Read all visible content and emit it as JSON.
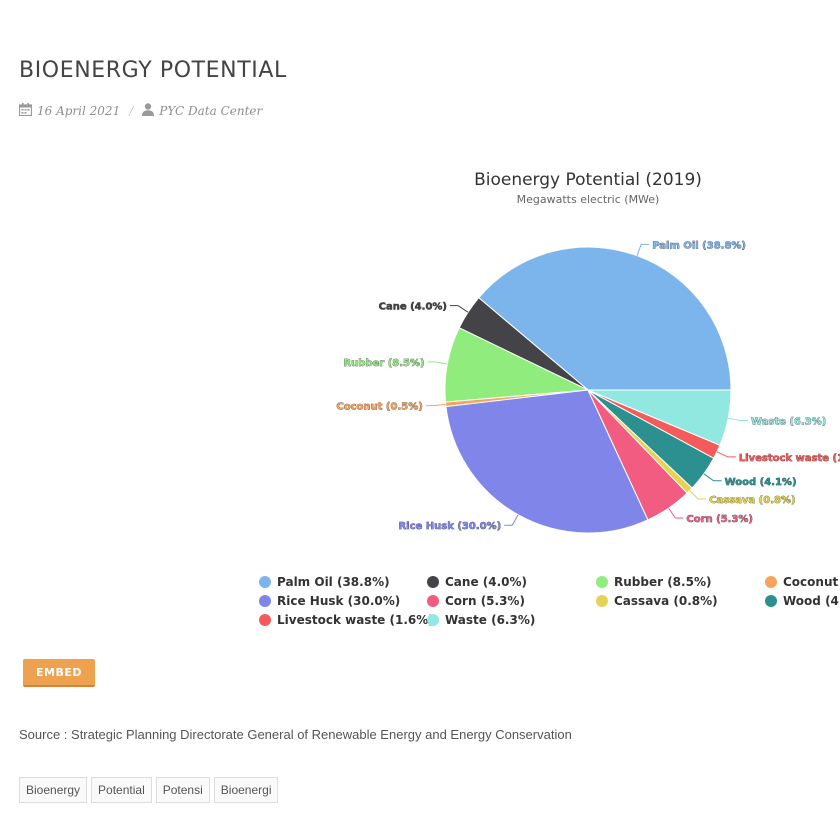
{
  "page": {
    "title": "BIOENERGY POTENTIAL",
    "date": "16 April 2021",
    "author": "PYC Data Center",
    "meta_separator": "/"
  },
  "embed_label": "EMBED",
  "source": "Source : Strategic Planning Directorate General of Renewable Energy and Energy Conservation",
  "tags": [
    "Bioenergy",
    "Potential",
    "Potensi",
    "Bioenergi"
  ],
  "icons": {
    "date": "calendar-icon",
    "author": "user-icon"
  },
  "chart_data": {
    "type": "pie",
    "title": "Bioenergy Potential (2019)",
    "subtitle": "Megawatts electric (MWe)",
    "slices": [
      {
        "name": "Palm Oil",
        "value": 38.8,
        "label": "Palm Oil (38.8%)",
        "color": "#7cb5ec"
      },
      {
        "name": "Cane",
        "value": 4.0,
        "label": "Cane (4.0%)",
        "color": "#434348"
      },
      {
        "name": "Rubber",
        "value": 8.5,
        "label": "Rubber (8.5%)",
        "color": "#90ed7d"
      },
      {
        "name": "Coconut",
        "value": 0.5,
        "label": "Coconut (0.5%)",
        "color": "#f7a35c"
      },
      {
        "name": "Rice Husk",
        "value": 30.0,
        "label": "Rice Husk (30.0%)",
        "color": "#8085e9"
      },
      {
        "name": "Corn",
        "value": 5.3,
        "label": "Corn (5.3%)",
        "color": "#f15c80"
      },
      {
        "name": "Cassava",
        "value": 0.8,
        "label": "Cassava (0.8%)",
        "color": "#e4d354"
      },
      {
        "name": "Wood",
        "value": 4.1,
        "label": "Wood (4.1%)",
        "color": "#2b908f"
      },
      {
        "name": "Livestock waste",
        "value": 1.6,
        "label": "Livestock waste (1.6%)",
        "color": "#f45b5b"
      },
      {
        "name": "Waste",
        "value": 6.3,
        "label": "Waste (6.3%)",
        "color": "#91e8e1"
      }
    ],
    "legend_placement": "bottom"
  }
}
